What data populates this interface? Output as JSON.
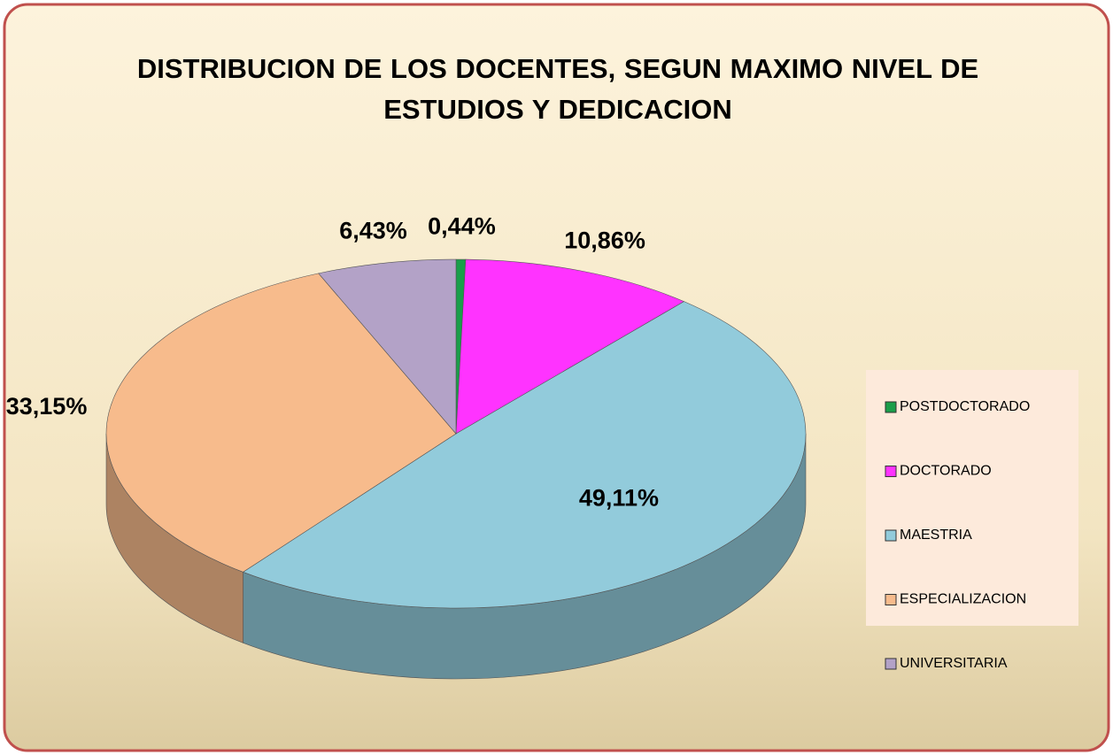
{
  "chart_data": {
    "type": "pie",
    "title": "DISTRIBUCION DE LOS DOCENTES, SEGUN  MAXIMO NIVEL DE ESTUDIOS Y DEDICACION",
    "categories": [
      "POSTDOCTORADO",
      "DOCTORADO",
      "MAESTRIA",
      "ESPECIALIZACION",
      "UNIVERSITARIA"
    ],
    "values": [
      0.44,
      10.86,
      49.11,
      33.15,
      6.43
    ],
    "value_labels": [
      "0,44%",
      "10,86%",
      "49,11%",
      "33,15%",
      "6,43%"
    ],
    "colors": [
      "#1a9e4a",
      "#ff33ff",
      "#92cbdb",
      "#f7bb8c",
      "#b3a2c7"
    ],
    "legend": "right"
  }
}
